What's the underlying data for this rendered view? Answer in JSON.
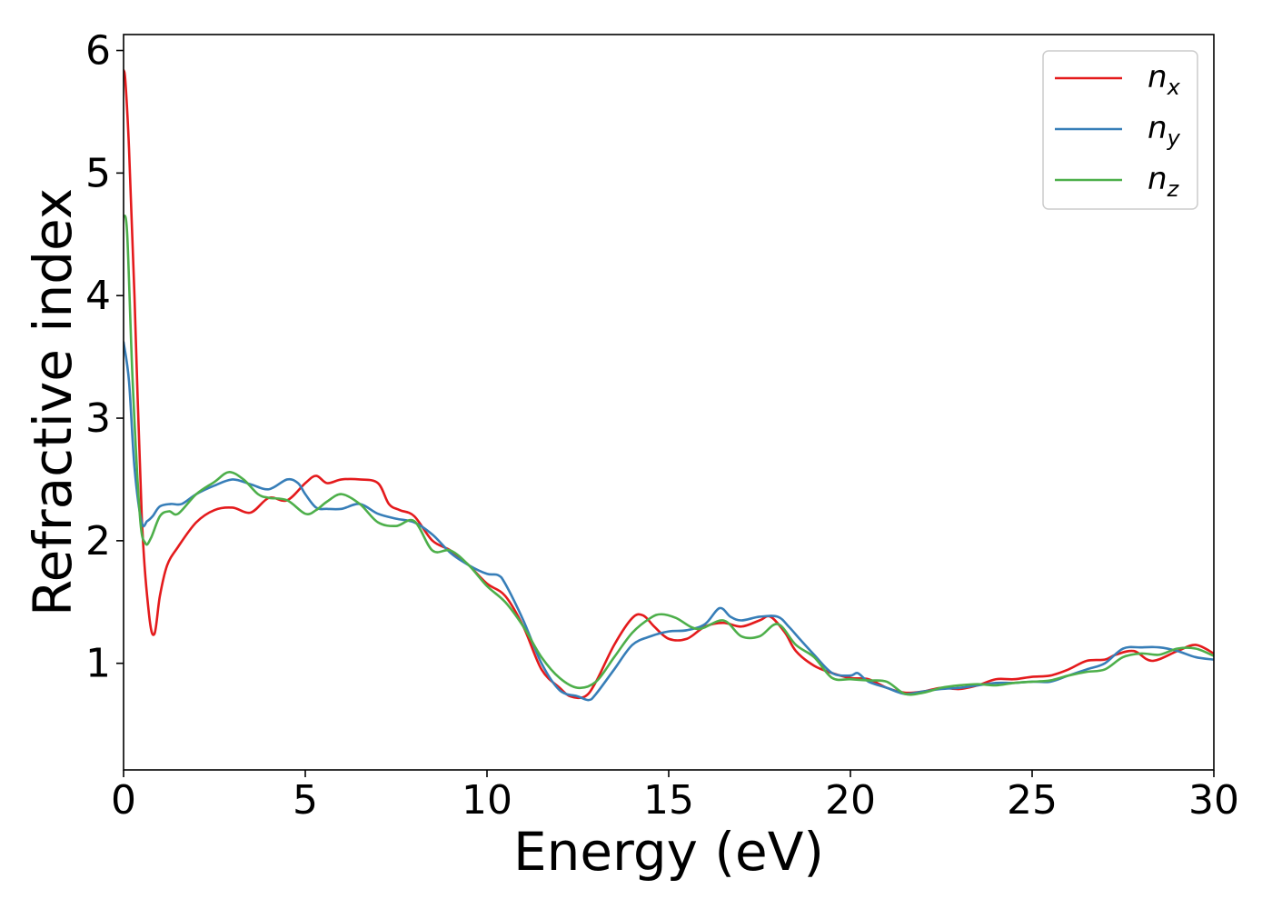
{
  "chart_data": {
    "type": "line",
    "xlabel": "Energy (eV)",
    "ylabel": "Refractive index",
    "xlim": [
      0,
      30
    ],
    "ylim": [
      0.13,
      6.13
    ],
    "xticks": [
      0,
      5,
      10,
      15,
      20,
      25,
      30
    ],
    "yticks": [
      1,
      2,
      3,
      4,
      5,
      6
    ],
    "grid": false,
    "legend_position": "top-right",
    "series": [
      {
        "name": "n",
        "subscript": "x",
        "color": "#e41a1c",
        "x": [
          0,
          0.05,
          0.15,
          0.3,
          0.5,
          0.7,
          0.85,
          1.0,
          1.2,
          1.5,
          2.0,
          2.5,
          3.0,
          3.5,
          4.0,
          4.5,
          5.0,
          5.3,
          5.6,
          6.0,
          6.5,
          7.0,
          7.3,
          7.6,
          8.0,
          8.5,
          9.0,
          9.5,
          10.0,
          10.5,
          11.0,
          11.5,
          12.0,
          12.3,
          12.7,
          13.0,
          13.5,
          14.0,
          14.3,
          14.6,
          15.0,
          15.5,
          16.0,
          16.5,
          17.0,
          17.5,
          17.8,
          18.2,
          18.5,
          19.0,
          19.5,
          20.0,
          20.5,
          21.0,
          21.5,
          22.0,
          22.5,
          23.0,
          23.5,
          24.0,
          24.5,
          25.0,
          25.5,
          26.0,
          26.5,
          27.0,
          27.3,
          27.8,
          28.3,
          29.0,
          29.5,
          30.0
        ],
        "y": [
          5.84,
          5.75,
          5.2,
          4.0,
          2.2,
          1.4,
          1.24,
          1.55,
          1.8,
          1.95,
          2.15,
          2.25,
          2.27,
          2.23,
          2.35,
          2.33,
          2.47,
          2.53,
          2.47,
          2.5,
          2.5,
          2.47,
          2.3,
          2.25,
          2.2,
          2.0,
          1.92,
          1.8,
          1.65,
          1.55,
          1.3,
          0.95,
          0.8,
          0.73,
          0.73,
          0.85,
          1.15,
          1.37,
          1.39,
          1.3,
          1.2,
          1.2,
          1.3,
          1.33,
          1.3,
          1.35,
          1.38,
          1.25,
          1.1,
          0.98,
          0.92,
          0.88,
          0.87,
          0.8,
          0.76,
          0.77,
          0.8,
          0.79,
          0.82,
          0.87,
          0.87,
          0.89,
          0.9,
          0.95,
          1.02,
          1.03,
          1.07,
          1.1,
          1.02,
          1.1,
          1.15,
          1.08
        ]
      },
      {
        "name": "n",
        "subscript": "y",
        "color": "#377eb8",
        "x": [
          0,
          0.15,
          0.3,
          0.5,
          0.65,
          0.8,
          1.0,
          1.3,
          1.6,
          2.0,
          2.5,
          3.0,
          3.5,
          4.0,
          4.5,
          4.8,
          5.0,
          5.3,
          5.6,
          6.0,
          6.5,
          7.0,
          7.5,
          8.0,
          8.5,
          9.0,
          9.5,
          10.0,
          10.3,
          10.5,
          11.0,
          11.5,
          12.0,
          12.5,
          12.8,
          13.0,
          13.5,
          14.0,
          14.5,
          15.0,
          15.5,
          16.0,
          16.4,
          16.7,
          17.0,
          17.5,
          18.0,
          18.3,
          18.6,
          19.0,
          19.5,
          20.0,
          20.2,
          20.5,
          21.0,
          21.5,
          22.0,
          22.5,
          23.0,
          23.5,
          24.0,
          24.5,
          25.0,
          25.5,
          26.0,
          26.5,
          27.0,
          27.5,
          28.0,
          28.5,
          29.0,
          29.5,
          30.0
        ],
        "y": [
          3.62,
          3.3,
          2.6,
          2.15,
          2.16,
          2.2,
          2.28,
          2.3,
          2.3,
          2.38,
          2.45,
          2.5,
          2.46,
          2.42,
          2.5,
          2.47,
          2.38,
          2.27,
          2.26,
          2.26,
          2.3,
          2.22,
          2.18,
          2.15,
          2.05,
          1.9,
          1.8,
          1.73,
          1.72,
          1.65,
          1.35,
          1.0,
          0.78,
          0.73,
          0.7,
          0.75,
          0.95,
          1.15,
          1.22,
          1.26,
          1.27,
          1.32,
          1.45,
          1.38,
          1.35,
          1.38,
          1.38,
          1.3,
          1.2,
          1.07,
          0.92,
          0.9,
          0.92,
          0.85,
          0.8,
          0.75,
          0.77,
          0.79,
          0.8,
          0.82,
          0.84,
          0.84,
          0.85,
          0.85,
          0.9,
          0.95,
          1.0,
          1.12,
          1.13,
          1.13,
          1.1,
          1.05,
          1.03
        ]
      },
      {
        "name": "n",
        "subscript": "z",
        "color": "#4daf4a",
        "x": [
          0,
          0.1,
          0.25,
          0.45,
          0.6,
          0.75,
          1.0,
          1.25,
          1.5,
          2.0,
          2.5,
          2.9,
          3.3,
          3.7,
          4.0,
          4.5,
          5.0,
          5.3,
          5.6,
          6.0,
          6.5,
          7.0,
          7.5,
          8.0,
          8.5,
          9.0,
          9.5,
          10.0,
          10.5,
          11.0,
          11.5,
          12.0,
          12.5,
          13.0,
          13.5,
          14.0,
          14.5,
          14.8,
          15.2,
          15.8,
          16.5,
          17.0,
          17.5,
          18.0,
          18.5,
          19.0,
          19.5,
          20.0,
          20.5,
          21.0,
          21.5,
          22.0,
          22.5,
          23.0,
          23.5,
          24.0,
          24.5,
          25.0,
          25.5,
          26.0,
          26.5,
          27.0,
          27.5,
          28.0,
          28.5,
          29.0,
          29.5,
          30.0
        ],
        "y": [
          4.65,
          4.5,
          3.3,
          2.2,
          1.98,
          2.02,
          2.2,
          2.24,
          2.22,
          2.38,
          2.48,
          2.56,
          2.5,
          2.38,
          2.35,
          2.33,
          2.22,
          2.25,
          2.32,
          2.38,
          2.3,
          2.15,
          2.12,
          2.16,
          1.92,
          1.92,
          1.8,
          1.63,
          1.5,
          1.3,
          1.05,
          0.88,
          0.8,
          0.85,
          1.05,
          1.25,
          1.37,
          1.4,
          1.37,
          1.28,
          1.35,
          1.22,
          1.22,
          1.32,
          1.15,
          1.05,
          0.88,
          0.87,
          0.86,
          0.85,
          0.75,
          0.76,
          0.8,
          0.82,
          0.83,
          0.82,
          0.84,
          0.85,
          0.86,
          0.9,
          0.93,
          0.95,
          1.05,
          1.08,
          1.07,
          1.12,
          1.12,
          1.06
        ]
      }
    ]
  }
}
